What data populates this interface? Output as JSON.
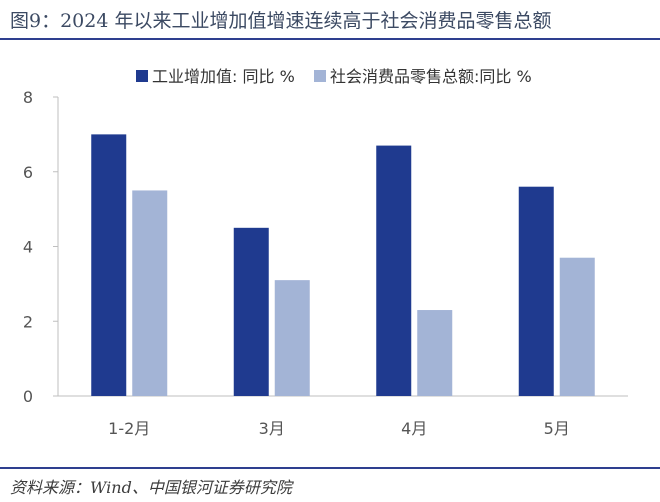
{
  "figure_title": "图9：2024 年以来工业增加值增速连续高于社会消费品零售总额",
  "source": "资料来源：Wind、中国银河证券研究院",
  "colors": {
    "series1": "#1f3a8f",
    "series2": "#a3b4d6",
    "axis": "#bfbfbf",
    "rule": "#2e3f8f"
  },
  "chart_data": {
    "type": "bar",
    "categories": [
      "1-2月",
      "3月",
      "4月",
      "5月"
    ],
    "series": [
      {
        "name": "工业增加值: 同比 %",
        "values": [
          7.0,
          4.5,
          6.7,
          5.6
        ]
      },
      {
        "name": "社会消费品零售总额:同比 %",
        "values": [
          5.5,
          3.1,
          2.3,
          3.7
        ]
      }
    ],
    "ylim": [
      0,
      8
    ],
    "yticks": [
      0,
      2,
      4,
      6,
      8
    ],
    "grid": false,
    "legend_position": "top"
  }
}
